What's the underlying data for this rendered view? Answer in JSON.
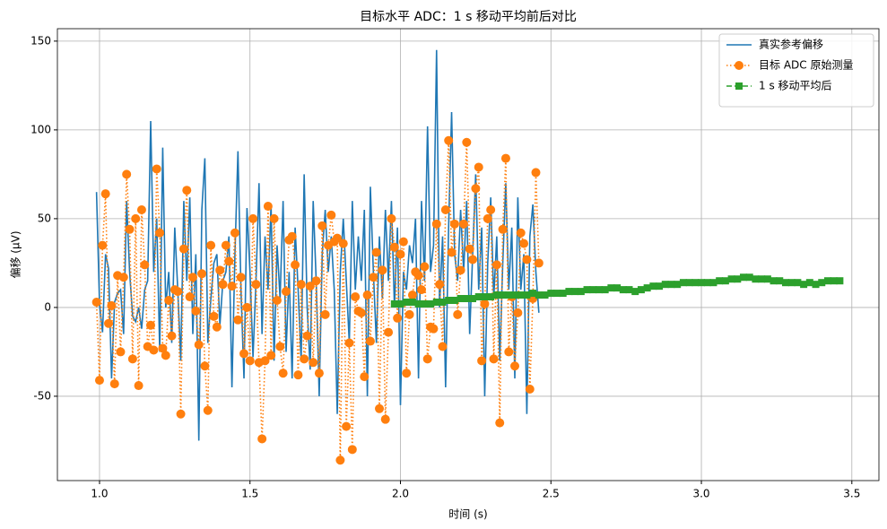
{
  "chart_data": {
    "type": "line",
    "title": "目标水平 ADC：1 s 移动平均前后对比",
    "xlabel": "时间 (s)",
    "ylabel": "偏移 (μV)",
    "xlim": [
      0.86,
      3.59
    ],
    "ylim": [
      -97.5,
      157
    ],
    "xticks": [
      {
        "value": 1,
        "label": "1.0"
      },
      {
        "value": 1.5,
        "label": "1.5"
      },
      {
        "value": 2,
        "label": "2.0"
      },
      {
        "value": 2.5,
        "label": "2.5"
      },
      {
        "value": 3,
        "label": "3.0"
      },
      {
        "value": 3.5,
        "label": "3.5"
      }
    ],
    "yticks": [
      -50,
      0,
      50,
      100,
      150
    ],
    "grid": true,
    "legend": "upper right",
    "series": [
      {
        "name": "真实参考偏移",
        "color": "#1f77b4",
        "linestyle": "solid",
        "x": [
          0.99,
          1.0,
          1.01,
          1.02,
          1.03,
          1.04,
          1.05,
          1.06,
          1.07,
          1.08,
          1.09,
          1.1,
          1.11,
          1.12,
          1.13,
          1.14,
          1.15,
          1.16,
          1.17,
          1.18,
          1.19,
          1.2,
          1.21,
          1.22,
          1.23,
          1.24,
          1.25,
          1.26,
          1.27,
          1.28,
          1.29,
          1.3,
          1.31,
          1.32,
          1.33,
          1.34,
          1.35,
          1.36,
          1.37,
          1.38,
          1.39,
          1.4,
          1.41,
          1.42,
          1.43,
          1.44,
          1.45,
          1.46,
          1.47,
          1.48,
          1.49,
          1.5,
          1.51,
          1.52,
          1.53,
          1.54,
          1.55,
          1.56,
          1.57,
          1.58,
          1.59,
          1.6,
          1.61,
          1.62,
          1.63,
          1.64,
          1.65,
          1.66,
          1.67,
          1.68,
          1.69,
          1.7,
          1.71,
          1.72,
          1.73,
          1.74,
          1.75,
          1.76,
          1.77,
          1.78,
          1.79,
          1.8,
          1.81,
          1.82,
          1.83,
          1.84,
          1.85,
          1.86,
          1.87,
          1.88,
          1.89,
          1.9,
          1.91,
          1.92,
          1.93,
          1.94,
          1.95,
          1.96,
          1.97,
          1.98,
          1.99,
          2.0,
          2.01,
          2.02,
          2.03,
          2.04,
          2.05,
          2.06,
          2.07,
          2.08,
          2.09,
          2.1,
          2.11,
          2.12,
          2.13,
          2.14,
          2.15,
          2.16,
          2.17,
          2.18,
          2.19,
          2.2,
          2.21,
          2.22,
          2.23,
          2.24,
          2.25,
          2.26,
          2.27,
          2.28,
          2.29,
          2.3,
          2.31,
          2.32,
          2.33,
          2.34,
          2.35,
          2.36,
          2.37,
          2.38,
          2.39,
          2.4,
          2.41,
          2.42,
          2.43,
          2.44,
          2.45,
          2.46
        ],
        "values": [
          65,
          2,
          -14,
          30,
          22,
          -40,
          3,
          8,
          10,
          -15,
          60,
          20,
          -5,
          -8,
          0,
          -12,
          10,
          15,
          105,
          20,
          50,
          -25,
          90,
          0,
          20,
          -20,
          45,
          10,
          -30,
          60,
          15,
          62,
          -15,
          30,
          -75,
          55,
          84,
          -20,
          5,
          25,
          30,
          -10,
          15,
          20,
          40,
          -45,
          30,
          88,
          10,
          -40,
          56,
          20,
          -28,
          15,
          70,
          -15,
          40,
          10,
          58,
          -30,
          35,
          5,
          60,
          -25,
          20,
          -40,
          45,
          10,
          -30,
          75,
          0,
          -35,
          60,
          15,
          -50,
          30,
          55,
          20,
          40,
          10,
          -60,
          20,
          50,
          15,
          -20,
          60,
          10,
          40,
          15,
          55,
          -50,
          68,
          20,
          -20,
          40,
          5,
          55,
          15,
          60,
          0,
          45,
          -55,
          20,
          10,
          35,
          25,
          50,
          -40,
          60,
          15,
          102,
          20,
          35,
          145,
          0,
          40,
          -45,
          45,
          110,
          30,
          15,
          55,
          20,
          60,
          -15,
          30,
          75,
          10,
          45,
          -50,
          25,
          62,
          5,
          40,
          -30,
          25,
          70,
          10,
          45,
          -40,
          62,
          10,
          30,
          -60,
          40,
          58,
          20,
          -3
        ]
      },
      {
        "name": "目标 ADC 原始测量",
        "color": "#ff7f0e",
        "linestyle": "dotted",
        "marker": "circle",
        "x": [
          0.99,
          1.0,
          1.01,
          1.02,
          1.03,
          1.04,
          1.05,
          1.06,
          1.07,
          1.08,
          1.09,
          1.1,
          1.11,
          1.12,
          1.13,
          1.14,
          1.15,
          1.16,
          1.17,
          1.18,
          1.19,
          1.2,
          1.21,
          1.22,
          1.23,
          1.24,
          1.25,
          1.26,
          1.27,
          1.28,
          1.29,
          1.3,
          1.31,
          1.32,
          1.33,
          1.34,
          1.35,
          1.36,
          1.37,
          1.38,
          1.39,
          1.4,
          1.41,
          1.42,
          1.43,
          1.44,
          1.45,
          1.46,
          1.47,
          1.48,
          1.49,
          1.5,
          1.51,
          1.52,
          1.53,
          1.54,
          1.55,
          1.56,
          1.57,
          1.58,
          1.59,
          1.6,
          1.61,
          1.62,
          1.63,
          1.64,
          1.65,
          1.66,
          1.67,
          1.68,
          1.69,
          1.7,
          1.71,
          1.72,
          1.73,
          1.74,
          1.75,
          1.76,
          1.77,
          1.78,
          1.79,
          1.8,
          1.81,
          1.82,
          1.83,
          1.84,
          1.85,
          1.86,
          1.87,
          1.88,
          1.89,
          1.9,
          1.91,
          1.92,
          1.93,
          1.94,
          1.95,
          1.96,
          1.97,
          1.98,
          1.99,
          2.0,
          2.01,
          2.02,
          2.03,
          2.04,
          2.05,
          2.06,
          2.07,
          2.08,
          2.09,
          2.1,
          2.11,
          2.12,
          2.13,
          2.14,
          2.15,
          2.16,
          2.17,
          2.18,
          2.19,
          2.2,
          2.21,
          2.22,
          2.23,
          2.24,
          2.25,
          2.26,
          2.27,
          2.28,
          2.29,
          2.3,
          2.31,
          2.32,
          2.33,
          2.34,
          2.35,
          2.36,
          2.37,
          2.38,
          2.39,
          2.4,
          2.41,
          2.42,
          2.43,
          2.44,
          2.45,
          2.46
        ],
        "values": [
          3,
          -41,
          35,
          64,
          -9,
          1,
          -43,
          18,
          -25,
          17,
          75,
          44,
          -29,
          50,
          -44,
          55,
          24,
          -22,
          -10,
          -24,
          78,
          42,
          -23,
          -27,
          4,
          -16,
          10,
          9,
          -60,
          33,
          66,
          6,
          17,
          -2,
          -21,
          19,
          -33,
          -58,
          35,
          -5,
          -11,
          21,
          13,
          35,
          26,
          12,
          42,
          -7,
          17,
          -26,
          0,
          -30,
          50,
          13,
          -31,
          -74,
          -30,
          57,
          -27,
          50,
          4,
          -22,
          -37,
          9,
          38,
          40,
          24,
          -38,
          13,
          -29,
          -16,
          12,
          -31,
          15,
          -37,
          46,
          -4,
          35,
          52,
          37,
          39,
          -86,
          36,
          -67,
          -20,
          -80,
          6,
          -2,
          -3,
          -39,
          7,
          -19,
          17,
          31,
          -57,
          21,
          -63,
          -14,
          50,
          34,
          -6,
          30,
          37,
          -37,
          -4,
          7,
          20,
          18,
          10,
          23,
          -29,
          -11,
          -12,
          47,
          13,
          -22,
          55,
          94,
          31,
          47,
          -4,
          21,
          47,
          93,
          33,
          27,
          67,
          79,
          -30,
          2,
          50,
          55,
          -29,
          24,
          -65,
          44,
          84,
          -25,
          6,
          -33,
          -3,
          42,
          36,
          27,
          -46,
          5,
          76,
          25
        ]
      },
      {
        "name": "1 s 移动平均后",
        "color": "#2ca02c",
        "linestyle": "dashed",
        "marker": "square",
        "x": [
          1.98,
          2.0,
          2.02,
          2.04,
          2.06,
          2.08,
          2.1,
          2.12,
          2.14,
          2.16,
          2.18,
          2.2,
          2.22,
          2.24,
          2.26,
          2.28,
          2.3,
          2.32,
          2.34,
          2.36,
          2.38,
          2.4,
          2.42,
          2.44,
          2.46,
          2.48,
          2.5,
          2.52,
          2.54,
          2.56,
          2.58,
          2.6,
          2.62,
          2.64,
          2.66,
          2.68,
          2.7,
          2.72,
          2.74,
          2.76,
          2.78,
          2.8,
          2.82,
          2.84,
          2.86,
          2.88,
          2.9,
          2.92,
          2.94,
          2.96,
          2.98,
          3.0,
          3.02,
          3.04,
          3.06,
          3.08,
          3.1,
          3.12,
          3.14,
          3.16,
          3.18,
          3.2,
          3.22,
          3.24,
          3.26,
          3.28,
          3.3,
          3.32,
          3.34,
          3.36,
          3.38,
          3.4,
          3.42,
          3.44,
          3.46
        ],
        "values": [
          2,
          2,
          3,
          3,
          2,
          2,
          2,
          3,
          3,
          4,
          4,
          5,
          5,
          5,
          6,
          6,
          6,
          7,
          7,
          7,
          7,
          7,
          7,
          8,
          7,
          7,
          8,
          8,
          8,
          9,
          9,
          9,
          10,
          10,
          10,
          10,
          11,
          11,
          10,
          10,
          9,
          10,
          11,
          12,
          12,
          13,
          13,
          13,
          14,
          14,
          14,
          14,
          14,
          14,
          15,
          15,
          16,
          16,
          17,
          17,
          16,
          16,
          16,
          15,
          15,
          14,
          14,
          14,
          13,
          14,
          13,
          14,
          15,
          15,
          15
        ]
      }
    ]
  }
}
